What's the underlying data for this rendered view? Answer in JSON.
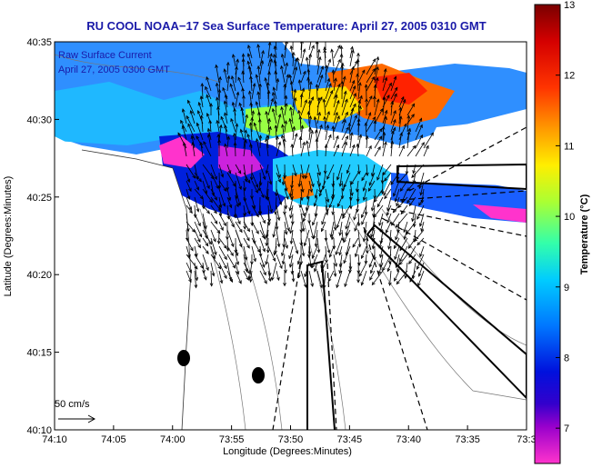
{
  "title": "RU COOL  NOAA−17  Sea Surface Temperature:  April 27, 2005 0310 GMT",
  "legend": {
    "line1": "Raw Surface Current",
    "line2": "April 27, 2005 0300 GMT"
  },
  "scale_label": "50 cm/s",
  "xlabel": "Longitude (Degrees:Minutes)",
  "ylabel": "Latitude (Degrees:Minutes)",
  "x_ticks": [
    "74:10",
    "74:05",
    "74:00",
    "73:55",
    "73:50",
    "73:45",
    "73:40",
    "73:35",
    "73:3"
  ],
  "y_ticks": [
    "40:35",
    "40:30",
    "40:25",
    "40:20",
    "40:15",
    "40:10"
  ],
  "colorbar": {
    "label": "Temperature (°C)",
    "ticks": [
      "13",
      "12",
      "11",
      "10",
      "9",
      "8",
      "7"
    ],
    "min": 6.5,
    "max": 13
  },
  "colors": {
    "title": "#1a1aa8",
    "arrows": "#000000",
    "land": "#ffffff"
  }
}
